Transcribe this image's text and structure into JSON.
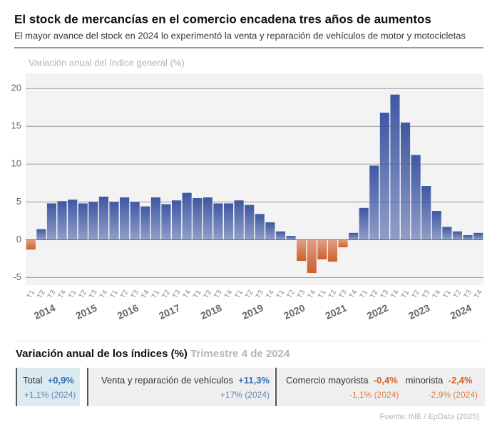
{
  "chart_data": {
    "type": "bar",
    "title": "El stock de mercancías en el comercio encadena tres años de aumentos",
    "subtitle": "El mayor avance del stock en 2024 lo experimentó la venta y reparación de vehículos de motor y motocicletas",
    "ylabel": "Variación anual del índice general (%)",
    "categories": [
      "T1",
      "T2",
      "T3",
      "T4",
      "T1",
      "T2",
      "T3",
      "T4",
      "T1",
      "T2",
      "T3",
      "T4",
      "T1",
      "T2",
      "T3",
      "T4",
      "T1",
      "T2",
      "T3",
      "T4",
      "T1",
      "T2",
      "T3",
      "T4",
      "T1",
      "T2",
      "T3",
      "T4",
      "T1",
      "T2",
      "T3",
      "T4",
      "T1",
      "T2",
      "T3",
      "T4",
      "T1",
      "T2",
      "T3",
      "T4",
      "T1",
      "T2",
      "T3",
      "T4"
    ],
    "years": [
      "2014",
      "2015",
      "2016",
      "2017",
      "2018",
      "2019",
      "2020",
      "2021",
      "2022",
      "2023",
      "2024"
    ],
    "values": [
      -1.3,
      1.4,
      4.8,
      5.1,
      5.3,
      4.8,
      5.0,
      5.7,
      5.0,
      5.6,
      5.0,
      4.4,
      5.6,
      4.7,
      5.2,
      6.2,
      5.5,
      5.6,
      4.8,
      4.8,
      5.2,
      4.6,
      3.4,
      2.3,
      1.1,
      0.5,
      -2.8,
      -4.4,
      -2.6,
      -2.9,
      -1.0,
      0.9,
      4.2,
      9.8,
      16.8,
      19.2,
      15.5,
      11.2,
      7.1,
      3.8,
      1.7,
      1.1,
      0.6,
      0.9
    ],
    "color_positive": "#3f58a3",
    "color_negative": "#cf5e2c",
    "ylim": [
      -6,
      22
    ],
    "yticks": [
      -5,
      0,
      5,
      10,
      15,
      20
    ],
    "grid": true
  },
  "summary": {
    "title": "Variación anual de los índices (%)",
    "period": "Trimestre 4 de 2024",
    "cards": [
      {
        "label": "Total",
        "value": "+0,9%",
        "sub": "+1,1% (2024)"
      },
      {
        "label": "Venta y reparación de vehículos",
        "value": "+11,3%",
        "sub": "+17% (2024)"
      },
      {
        "label": "Comercio mayorista",
        "value": "-0,4%",
        "sub": "-1,1% (2024)"
      },
      {
        "label": "minorista",
        "value": "-2,4%",
        "sub": "-2,9% (2024)"
      }
    ],
    "source": "Fuente: INE / EpData (2025)"
  }
}
